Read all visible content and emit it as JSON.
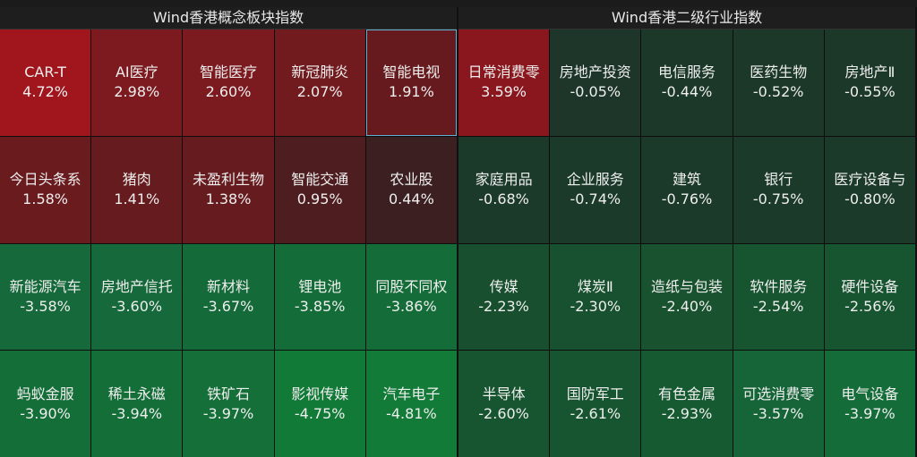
{
  "panels": [
    {
      "title": "Wind香港概念板块指数",
      "tiles": [
        {
          "label": "CAR-T",
          "value": "4.72%",
          "color": "#a1161d"
        },
        {
          "label": "AI医疗",
          "value": "2.98%",
          "color": "#7c1a1f"
        },
        {
          "label": "智能医疗",
          "value": "2.60%",
          "color": "#7b1a1f"
        },
        {
          "label": "新冠肺炎",
          "value": "2.07%",
          "color": "#721b1f"
        },
        {
          "label": "智能电视",
          "value": "1.91%",
          "color": "#661a1d",
          "selected": true
        },
        {
          "label": "今日头条系",
          "value": "1.58%",
          "color": "#6a1b1e"
        },
        {
          "label": "猪肉",
          "value": "1.41%",
          "color": "#661b1e"
        },
        {
          "label": "未盈利生物",
          "value": "1.38%",
          "color": "#661b1e"
        },
        {
          "label": "智能交通",
          "value": "0.95%",
          "color": "#4e1d20"
        },
        {
          "label": "农业股",
          "value": "0.44%",
          "color": "#3b1f21"
        },
        {
          "label": "新能源汽车",
          "value": "-3.58%",
          "color": "#15693a"
        },
        {
          "label": "房地产信托",
          "value": "-3.60%",
          "color": "#15693a"
        },
        {
          "label": "新材料",
          "value": "-3.67%",
          "color": "#156a3a"
        },
        {
          "label": "锂电池",
          "value": "-3.85%",
          "color": "#146d38"
        },
        {
          "label": "同股不同权",
          "value": "-3.86%",
          "color": "#146d38"
        },
        {
          "label": "蚂蚁金服",
          "value": "-3.90%",
          "color": "#146e38"
        },
        {
          "label": "稀土永磁",
          "value": "-3.94%",
          "color": "#146e38"
        },
        {
          "label": "铁矿石",
          "value": "-3.97%",
          "color": "#146f38"
        },
        {
          "label": "影视传媒",
          "value": "-4.75%",
          "color": "#127a37"
        },
        {
          "label": "汽车电子",
          "value": "-4.81%",
          "color": "#127b37"
        }
      ]
    },
    {
      "title": "Wind香港二级行业指数",
      "tiles": [
        {
          "label": "日常消费零",
          "value": "3.59%",
          "color": "#8a171d"
        },
        {
          "label": "房地产投资",
          "value": "-0.05%",
          "color": "#1d3629"
        },
        {
          "label": "电信服务",
          "value": "-0.44%",
          "color": "#1c3829"
        },
        {
          "label": "医药生物",
          "value": "-0.52%",
          "color": "#1c3829"
        },
        {
          "label": "房地产Ⅱ",
          "value": "-0.55%",
          "color": "#1c3829"
        },
        {
          "label": "家庭用品",
          "value": "-0.68%",
          "color": "#1c3a2a"
        },
        {
          "label": "企业服务",
          "value": "-0.74%",
          "color": "#1c3a2a"
        },
        {
          "label": "建筑",
          "value": "-0.76%",
          "color": "#1c3a2a"
        },
        {
          "label": "银行",
          "value": "-0.75%",
          "color": "#1c3a2a"
        },
        {
          "label": "医疗设备与",
          "value": "-0.80%",
          "color": "#1c3a2a"
        },
        {
          "label": "传媒",
          "value": "-2.23%",
          "color": "#18502f"
        },
        {
          "label": "煤炭Ⅱ",
          "value": "-2.30%",
          "color": "#18512f"
        },
        {
          "label": "造纸与包装",
          "value": "-2.40%",
          "color": "#18522f"
        },
        {
          "label": "软件服务",
          "value": "-2.54%",
          "color": "#175430"
        },
        {
          "label": "硬件设备",
          "value": "-2.56%",
          "color": "#175430"
        },
        {
          "label": "半导体",
          "value": "-2.60%",
          "color": "#175530"
        },
        {
          "label": "国防军工",
          "value": "-2.61%",
          "color": "#175530"
        },
        {
          "label": "有色金属",
          "value": "-2.93%",
          "color": "#165a32"
        },
        {
          "label": "可选消费零",
          "value": "-3.57%",
          "color": "#156538"
        },
        {
          "label": "电气设备",
          "value": "-3.97%",
          "color": "#146d38"
        }
      ]
    }
  ]
}
